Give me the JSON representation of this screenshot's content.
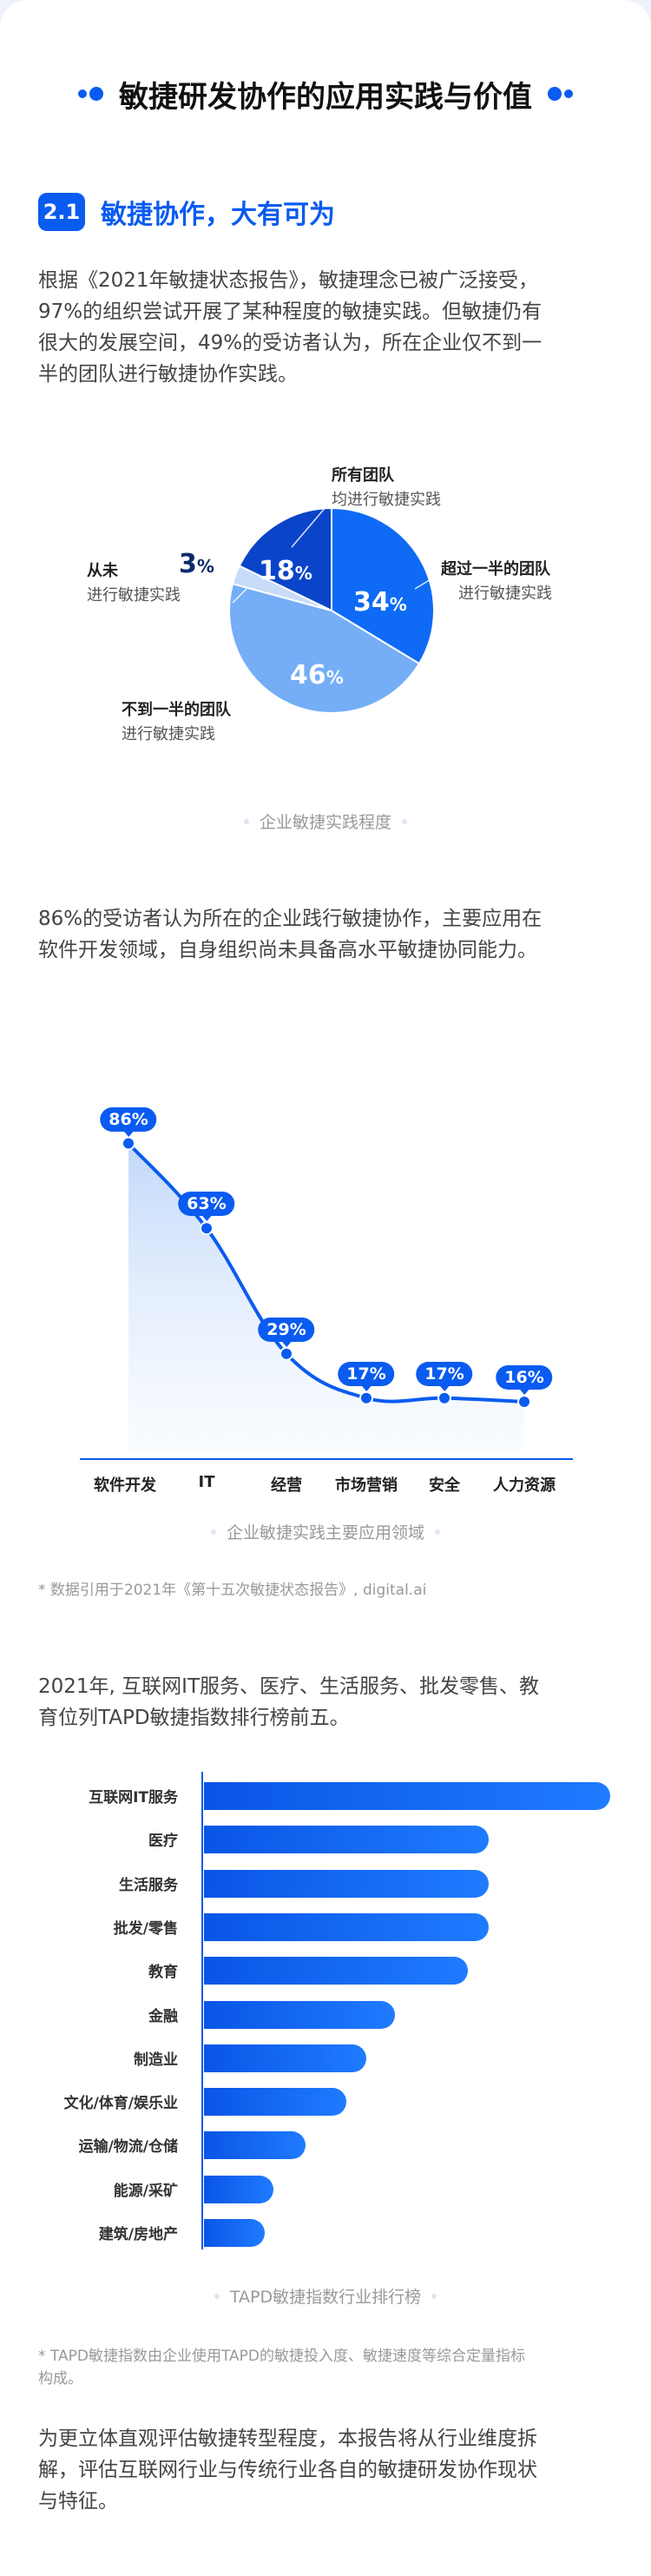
{
  "header": {
    "title": "敏捷研发协作的应用实践与价值"
  },
  "section": {
    "number": "2.1",
    "title": "敏捷协作，大有可为"
  },
  "intro": {
    "lines": [
      "根据《2021年敏捷状态报告》，敏捷理念已被广泛接受，",
      "97%的组织尝试开展了某种程度的敏捷实践。但敏捷仍有",
      "很大的发展空间，49%的受访者认为，所在企业仅不到一",
      "半的团队进行敏捷协作实践。"
    ]
  },
  "pie": {
    "caption": "企业敏捷实践程度",
    "slices": [
      {
        "value": 34,
        "pct": "34",
        "unit": "%",
        "title": "超过一半的团队",
        "subtitle": "进行敏捷实践",
        "color": "#0f6bf5"
      },
      {
        "value": 46,
        "pct": "46",
        "unit": "%",
        "title": "不到一半的团队",
        "subtitle": "进行敏捷实践",
        "color": "#75aef7"
      },
      {
        "value": 3,
        "pct": "3",
        "unit": "%",
        "title": "从未",
        "subtitle": "进行敏捷实践",
        "color": "#c6dcf9"
      },
      {
        "value": 18,
        "pct": "18",
        "unit": "%",
        "title": "所有团队",
        "subtitle": "均进行敏捷实践",
        "color": "#0a45c9"
      }
    ]
  },
  "para2": {
    "lines": [
      "86%的受访者认为所在的企业践行敏捷协作，主要应用在",
      "软件开发领域，自身组织尚未具备高水平敏捷协同能力。"
    ]
  },
  "line": {
    "caption": "企业敏捷实践主要应用领域",
    "note": "* 数据引用于2021年《第十五次敏捷状态报告》, digital.ai"
  },
  "para3": {
    "lines": [
      "2021年, 互联网IT服务、医疗、生活服务、批发零售、教",
      "育位列TAPD敏捷指数排行榜前五。"
    ]
  },
  "hbar": {
    "caption": "TAPD敏捷指数行业排行榜",
    "note_lines": [
      "* TAPD敏捷指数由企业使用TAPD的敏捷投入度、敏捷速度等综合定量指标",
      "构成。"
    ]
  },
  "closing": {
    "lines": [
      "为更立体直观评估敏捷转型程度，本报告将从行业维度拆",
      "解，评估互联网行业与传统行业各自的敏捷研发协作现状",
      "与特征。"
    ]
  },
  "chart_data": [
    {
      "type": "pie",
      "title": "",
      "categories": [
        "超过一半的团队进行敏捷实践",
        "不到一半的团队进行敏捷实践",
        "从未进行敏捷实践",
        "所有团队均进行敏捷实践"
      ],
      "values": [
        34,
        46,
        3,
        18
      ],
      "unit": "%"
    },
    {
      "type": "line",
      "title": "",
      "categories": [
        "软件开发",
        "IT",
        "经营",
        "市场营销",
        "安全",
        "人力资源"
      ],
      "values": [
        86,
        63,
        29,
        17,
        17,
        16
      ],
      "labels": [
        "86%",
        "63%",
        "29%",
        "17%",
        "17%",
        "16%"
      ],
      "ylim": [
        0,
        100
      ],
      "grid": false
    },
    {
      "type": "bar",
      "orientation": "horizontal",
      "title": "",
      "categories": [
        "互联网IT服务",
        "医疗",
        "生活服务",
        "批发/零售",
        "教育",
        "金融",
        "制造业",
        "文化/体育/娱乐业",
        "运输/物流/仓储",
        "能源/采矿",
        "建筑/房地产"
      ],
      "values": [
        100,
        70,
        70,
        70,
        65,
        47,
        40,
        35,
        25,
        17,
        15
      ],
      "xlim": [
        0,
        100
      ],
      "grid": false
    }
  ]
}
